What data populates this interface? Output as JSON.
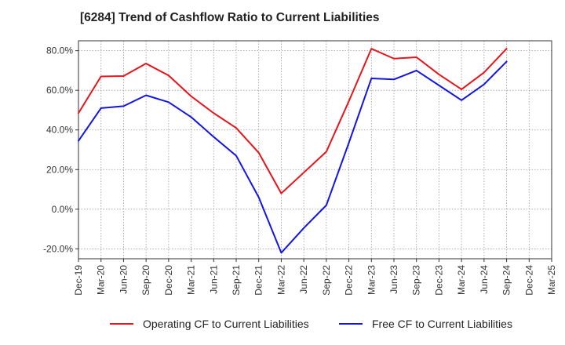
{
  "colors": {
    "operating": "#e8141b",
    "free": "#1414e6",
    "grid": "#999999",
    "axis": "#333333"
  },
  "chart_data": {
    "type": "line",
    "title": "[6284]  Trend of Cashflow Ratio to Current Liabilities",
    "xlabel": "",
    "ylabel": "",
    "ylim": [
      -25,
      85
    ],
    "yticks": [
      80,
      60,
      40,
      20,
      0,
      -20
    ],
    "ytick_labels": [
      "80.0%",
      "60.0%",
      "40.0%",
      "20.0%",
      "0.0%",
      "-20.0%"
    ],
    "categories": [
      "Dec-19",
      "Mar-20",
      "Jun-20",
      "Sep-20",
      "Dec-20",
      "Mar-21",
      "Jun-21",
      "Sep-21",
      "Dec-21",
      "Mar-22",
      "Jun-22",
      "Sep-22",
      "Dec-22",
      "Mar-23",
      "Jun-23",
      "Sep-23",
      "Dec-23",
      "Mar-24",
      "Jun-24",
      "Sep-24",
      "Dec-24",
      "Mar-25"
    ],
    "x_tick_labels": [
      "Dec-19",
      "Mar-20",
      "Jun-20",
      "Sep-20",
      "Dec-20",
      "Mar-21",
      "Jun-21",
      "Sep-21",
      "Dec-21",
      "Mar-22",
      "Jun-22",
      "Sep-22",
      "Dec-22",
      "Mar-23",
      "Jun-23",
      "Sep-23",
      "Dec-23",
      "Mar-24",
      "Jun-24",
      "Sep-24",
      "Dec-24",
      "Mar-25"
    ],
    "grid": true,
    "legend_position": "bottom",
    "series": [
      {
        "name": "Operating CF to Current Liabilities",
        "color_key": "operating",
        "values": [
          48.5,
          67.0,
          67.2,
          73.5,
          67.5,
          57.0,
          48.5,
          41.0,
          28.5,
          8.0,
          18.5,
          29.0,
          54.5,
          81.0,
          76.0,
          76.7,
          68.0,
          60.5,
          69.0,
          81.0,
          null,
          null
        ]
      },
      {
        "name": "Free CF to Current Liabilities",
        "color_key": "free",
        "values": [
          34.5,
          51.0,
          52.0,
          57.5,
          54.0,
          46.5,
          36.5,
          27.0,
          6.0,
          -22.0,
          -9.5,
          2.0,
          33.5,
          66.0,
          65.5,
          70.0,
          62.5,
          55.0,
          63.0,
          74.5,
          null,
          null
        ]
      }
    ]
  }
}
